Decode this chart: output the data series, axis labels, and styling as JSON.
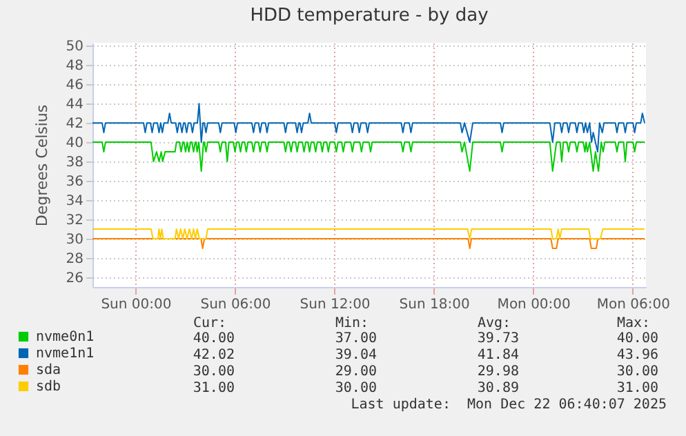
{
  "chart_data": {
    "type": "line",
    "title": "HDD temperature - by day",
    "ylabel": "Degrees Celsius",
    "xlim": [
      "2025-12-20T21:24",
      "2025-12-22T06:48"
    ],
    "xticks": [
      {
        "value": "2025-12-21T00:00",
        "label": "Sun 00:00"
      },
      {
        "value": "2025-12-21T06:00",
        "label": "Sun 06:00"
      },
      {
        "value": "2025-12-21T12:00",
        "label": "Sun 12:00"
      },
      {
        "value": "2025-12-21T18:00",
        "label": "Sun 18:00"
      },
      {
        "value": "2025-12-22T00:00",
        "label": "Mon 00:00"
      },
      {
        "value": "2025-12-22T06:00",
        "label": "Mon 06:00"
      }
    ],
    "ylim": [
      25,
      50.3
    ],
    "yticks": [
      26,
      28,
      30,
      32,
      34,
      36,
      38,
      40,
      42,
      44,
      46,
      48,
      50
    ],
    "grid": true,
    "legend": "bottom left",
    "marker": "none",
    "line_style": "solid",
    "series": [
      {
        "name": "nvme0n1",
        "color": "#00cc00",
        "x": [
          "2025-12-20T21:24",
          "2025-12-20T21:59",
          "2025-12-20T22:05",
          "2025-12-20T22:11",
          "2025-12-21T00:56",
          "2025-12-21T01:05",
          "2025-12-21T01:16",
          "2025-12-21T01:25",
          "2025-12-21T01:33",
          "2025-12-21T01:38",
          "2025-12-21T01:47",
          "2025-12-21T02:23",
          "2025-12-21T02:28",
          "2025-12-21T02:39",
          "2025-12-21T02:45",
          "2025-12-21T02:51",
          "2025-12-21T02:55",
          "2025-12-21T03:01",
          "2025-12-21T03:07",
          "2025-12-21T03:13",
          "2025-12-21T03:19",
          "2025-12-21T03:24",
          "2025-12-21T03:30",
          "2025-12-21T03:36",
          "2025-12-21T03:39",
          "2025-12-21T03:43",
          "2025-12-21T03:49",
          "2025-12-21T03:58",
          "2025-12-21T04:06",
          "2025-12-21T04:09",
          "2025-12-21T04:15",
          "2025-12-21T04:21",
          "2025-12-21T05:01",
          "2025-12-21T05:07",
          "2025-12-21T05:13",
          "2025-12-21T05:26",
          "2025-12-21T05:32",
          "2025-12-21T05:38",
          "2025-12-21T05:54",
          "2025-12-21T06:00",
          "2025-12-21T06:06",
          "2025-12-21T06:14",
          "2025-12-21T06:20",
          "2025-12-21T06:26",
          "2025-12-21T06:35",
          "2025-12-21T06:41",
          "2025-12-21T06:47",
          "2025-12-21T07:01",
          "2025-12-21T07:07",
          "2025-12-21T07:13",
          "2025-12-21T07:25",
          "2025-12-21T07:31",
          "2025-12-21T07:37",
          "2025-12-21T07:50",
          "2025-12-21T07:56",
          "2025-12-21T08:02",
          "2025-12-21T08:57",
          "2025-12-21T09:03",
          "2025-12-21T09:09",
          "2025-12-21T09:17",
          "2025-12-21T09:23",
          "2025-12-21T09:29",
          "2025-12-21T09:39",
          "2025-12-21T09:45",
          "2025-12-21T09:51",
          "2025-12-21T10:04",
          "2025-12-21T10:10",
          "2025-12-21T10:16",
          "2025-12-21T10:24",
          "2025-12-21T10:30",
          "2025-12-21T10:36",
          "2025-12-21T10:46",
          "2025-12-21T10:52",
          "2025-12-21T10:58",
          "2025-12-21T11:10",
          "2025-12-21T11:16",
          "2025-12-21T11:22",
          "2025-12-21T11:32",
          "2025-12-21T11:38",
          "2025-12-21T11:44",
          "2025-12-21T12:01",
          "2025-12-21T12:07",
          "2025-12-21T12:13",
          "2025-12-21T12:26",
          "2025-12-21T12:32",
          "2025-12-21T12:38",
          "2025-12-21T12:59",
          "2025-12-21T13:05",
          "2025-12-21T13:11",
          "2025-12-21T13:32",
          "2025-12-21T13:38",
          "2025-12-21T13:44",
          "2025-12-21T14:05",
          "2025-12-21T14:11",
          "2025-12-21T14:17",
          "2025-12-21T16:02",
          "2025-12-21T16:08",
          "2025-12-21T16:14",
          "2025-12-21T16:31",
          "2025-12-21T16:37",
          "2025-12-21T16:43",
          "2025-12-21T19:36",
          "2025-12-21T19:42",
          "2025-12-21T19:51",
          "2025-12-21T20:10",
          "2025-12-21T20:21",
          "2025-12-21T22:01",
          "2025-12-21T22:07",
          "2025-12-21T22:13",
          "2025-12-22T01:00",
          "2025-12-22T01:10",
          "2025-12-22T01:24",
          "2025-12-22T01:37",
          "2025-12-22T01:43",
          "2025-12-22T01:49",
          "2025-12-22T02:02",
          "2025-12-22T02:08",
          "2025-12-22T02:14",
          "2025-12-22T02:32",
          "2025-12-22T02:38",
          "2025-12-22T02:44",
          "2025-12-22T03:01",
          "2025-12-22T03:07",
          "2025-12-22T03:11",
          "2025-12-22T03:16",
          "2025-12-22T03:24",
          "2025-12-22T03:37",
          "2025-12-22T03:45",
          "2025-12-22T03:56",
          "2025-12-22T04:06",
          "2025-12-22T04:13",
          "2025-12-22T04:19",
          "2025-12-22T04:57",
          "2025-12-22T05:03",
          "2025-12-22T05:09",
          "2025-12-22T05:27",
          "2025-12-22T05:33",
          "2025-12-22T05:39",
          "2025-12-22T06:01",
          "2025-12-22T06:07",
          "2025-12-22T06:13",
          "2025-12-22T06:43"
        ],
        "values": [
          40,
          40,
          39,
          40,
          40,
          38,
          39,
          38,
          39,
          38,
          39,
          39,
          40,
          40,
          39,
          40,
          40,
          39,
          40,
          39,
          40,
          40,
          39,
          40,
          40,
          39,
          40,
          37,
          40,
          40,
          39,
          40,
          40,
          39,
          40,
          40,
          38,
          40,
          40,
          39,
          40,
          40,
          39,
          40,
          40,
          39,
          40,
          40,
          39,
          40,
          40,
          39,
          40,
          40,
          39,
          40,
          40,
          39,
          40,
          40,
          39,
          40,
          40,
          39,
          40,
          40,
          39,
          40,
          40,
          39,
          40,
          40,
          39,
          40,
          40,
          39,
          40,
          40,
          39,
          40,
          40,
          39,
          40,
          40,
          39,
          40,
          40,
          39,
          40,
          40,
          39,
          40,
          40,
          39,
          40,
          40,
          39,
          40,
          40,
          39,
          40,
          40,
          39,
          40,
          37,
          40,
          40,
          39,
          40,
          40,
          37,
          40,
          40,
          38,
          40,
          40,
          39,
          40,
          40,
          39,
          40,
          40,
          39,
          40,
          39,
          40,
          37,
          39,
          37,
          40,
          39,
          40,
          40,
          39,
          40,
          40,
          38,
          40,
          40,
          39,
          40,
          40
        ]
      },
      {
        "name": "nvme1n1",
        "color": "#0066b3",
        "x": [
          "2025-12-20T21:24",
          "2025-12-20T21:59",
          "2025-12-20T22:05",
          "2025-12-20T22:11",
          "2025-12-21T00:29",
          "2025-12-21T00:35",
          "2025-12-21T00:41",
          "2025-12-21T00:54",
          "2025-12-21T01:00",
          "2025-12-21T01:06",
          "2025-12-21T01:19",
          "2025-12-21T01:25",
          "2025-12-21T01:31",
          "2025-12-21T01:37",
          "2025-12-21T01:43",
          "2025-12-21T01:57",
          "2025-12-21T02:03",
          "2025-12-21T02:09",
          "2025-12-21T02:25",
          "2025-12-21T02:31",
          "2025-12-21T02:37",
          "2025-12-21T02:42",
          "2025-12-21T02:48",
          "2025-12-21T02:54",
          "2025-12-21T02:59",
          "2025-12-21T03:05",
          "2025-12-21T03:11",
          "2025-12-21T03:20",
          "2025-12-21T03:26",
          "2025-12-21T03:32",
          "2025-12-21T03:44",
          "2025-12-21T03:50",
          "2025-12-21T03:58",
          "2025-12-21T04:04",
          "2025-12-21T04:09",
          "2025-12-21T04:15",
          "2025-12-21T04:21",
          "2025-12-21T05:01",
          "2025-12-21T05:07",
          "2025-12-21T05:13",
          "2025-12-21T05:57",
          "2025-12-21T06:03",
          "2025-12-21T06:09",
          "2025-12-21T07:01",
          "2025-12-21T07:07",
          "2025-12-21T07:13",
          "2025-12-21T07:25",
          "2025-12-21T07:31",
          "2025-12-21T07:37",
          "2025-12-21T07:50",
          "2025-12-21T07:56",
          "2025-12-21T08:02",
          "2025-12-21T08:57",
          "2025-12-21T09:03",
          "2025-12-21T09:09",
          "2025-12-21T09:39",
          "2025-12-21T09:45",
          "2025-12-21T09:51",
          "2025-12-21T09:55",
          "2025-12-21T10:01",
          "2025-12-21T10:07",
          "2025-12-21T10:24",
          "2025-12-21T10:30",
          "2025-12-21T10:36",
          "2025-12-21T12:01",
          "2025-12-21T12:07",
          "2025-12-21T12:13",
          "2025-12-21T12:59",
          "2025-12-21T13:05",
          "2025-12-21T13:11",
          "2025-12-21T13:24",
          "2025-12-21T13:30",
          "2025-12-21T13:36",
          "2025-12-21T13:54",
          "2025-12-21T14:00",
          "2025-12-21T14:06",
          "2025-12-21T16:02",
          "2025-12-21T16:08",
          "2025-12-21T16:14",
          "2025-12-21T16:31",
          "2025-12-21T16:37",
          "2025-12-21T16:43",
          "2025-12-21T19:36",
          "2025-12-21T19:42",
          "2025-12-21T19:51",
          "2025-12-21T20:10",
          "2025-12-21T20:21",
          "2025-12-21T22:01",
          "2025-12-21T22:07",
          "2025-12-21T22:13",
          "2025-12-22T01:00",
          "2025-12-22T01:10",
          "2025-12-22T01:18",
          "2025-12-22T01:37",
          "2025-12-22T01:43",
          "2025-12-22T01:49",
          "2025-12-22T02:02",
          "2025-12-22T02:08",
          "2025-12-22T02:14",
          "2025-12-22T02:32",
          "2025-12-22T02:38",
          "2025-12-22T02:44",
          "2025-12-22T02:57",
          "2025-12-22T03:03",
          "2025-12-22T03:09",
          "2025-12-22T03:16",
          "2025-12-22T03:24",
          "2025-12-22T03:31",
          "2025-12-22T03:37",
          "2025-12-22T03:53",
          "2025-12-22T04:00",
          "2025-12-22T04:10",
          "2025-12-22T04:16",
          "2025-12-22T04:57",
          "2025-12-22T05:03",
          "2025-12-22T05:09",
          "2025-12-22T05:27",
          "2025-12-22T05:33",
          "2025-12-22T05:39",
          "2025-12-22T06:01",
          "2025-12-22T06:07",
          "2025-12-22T06:13",
          "2025-12-22T06:29",
          "2025-12-22T06:35",
          "2025-12-22T06:43"
        ],
        "values": [
          42,
          42,
          41,
          42,
          42,
          41,
          42,
          42,
          41,
          42,
          42,
          41,
          42,
          41,
          42,
          42,
          43,
          42,
          42,
          41,
          42,
          42,
          41,
          42,
          42,
          41,
          42,
          42,
          41,
          42,
          42,
          44,
          40,
          42,
          42,
          41,
          42,
          42,
          41,
          42,
          42,
          41,
          42,
          42,
          41,
          42,
          42,
          41,
          42,
          42,
          41,
          42,
          42,
          41,
          42,
          42,
          41,
          42,
          42,
          41,
          42,
          42,
          43,
          42,
          42,
          41,
          42,
          42,
          41,
          42,
          42,
          41,
          42,
          42,
          41,
          42,
          42,
          41,
          42,
          42,
          41,
          42,
          42,
          41,
          42,
          40,
          42,
          42,
          41,
          42,
          42,
          40,
          42,
          42,
          41,
          42,
          42,
          41,
          42,
          42,
          41,
          42,
          42,
          41,
          42,
          41,
          42,
          40,
          41,
          39,
          42,
          41,
          42,
          42,
          41,
          42,
          42,
          41,
          42,
          42,
          41,
          42,
          42,
          43,
          42
        ]
      },
      {
        "name": "sda",
        "color": "#ff8000",
        "x": [
          "2025-12-20T21:24",
          "2025-12-21T03:57",
          "2025-12-21T04:03",
          "2025-12-21T04:09",
          "2025-12-21T20:04",
          "2025-12-21T20:10",
          "2025-12-21T20:16",
          "2025-12-22T01:04",
          "2025-12-22T01:10",
          "2025-12-22T01:24",
          "2025-12-22T01:30",
          "2025-12-22T03:24",
          "2025-12-22T03:30",
          "2025-12-22T03:48",
          "2025-12-22T03:54",
          "2025-12-22T06:43"
        ],
        "values": [
          30,
          30,
          29,
          30,
          30,
          29,
          30,
          30,
          29,
          29,
          30,
          30,
          29,
          29,
          30,
          30
        ]
      },
      {
        "name": "sdb",
        "color": "#ffcc00",
        "x": [
          "2025-12-20T21:24",
          "2025-12-21T00:56",
          "2025-12-21T01:03",
          "2025-12-21T01:21",
          "2025-12-21T01:25",
          "2025-12-21T01:30",
          "2025-12-21T01:35",
          "2025-12-21T01:40",
          "2025-12-21T02:23",
          "2025-12-21T02:28",
          "2025-12-21T02:36",
          "2025-12-21T02:43",
          "2025-12-21T02:51",
          "2025-12-21T02:58",
          "2025-12-21T03:06",
          "2025-12-21T03:15",
          "2025-12-21T03:23",
          "2025-12-21T03:30",
          "2025-12-21T03:37",
          "2025-12-21T03:43",
          "2025-12-21T03:51",
          "2025-12-21T04:15",
          "2025-12-21T04:21",
          "2025-12-21T20:02",
          "2025-12-21T20:10",
          "2025-12-21T20:17",
          "2025-12-22T01:04",
          "2025-12-22T01:10",
          "2025-12-22T01:24",
          "2025-12-22T01:30",
          "2025-12-22T01:36",
          "2025-12-22T01:43",
          "2025-12-22T03:21",
          "2025-12-22T03:27",
          "2025-12-22T04:03",
          "2025-12-22T04:12",
          "2025-12-22T06:43"
        ],
        "values": [
          31,
          31,
          30,
          30,
          31,
          30,
          31,
          30,
          30,
          31,
          30,
          31,
          30,
          31,
          30,
          31,
          30,
          31,
          30,
          31,
          30,
          30,
          31,
          31,
          30,
          31,
          31,
          30,
          30,
          31,
          30,
          31,
          31,
          30,
          30,
          31,
          31
        ]
      }
    ],
    "annotations": [
      "Cur:",
      "Min:",
      "Avg:",
      "Max:",
      "40.00",
      "37.00",
      "39.73",
      "40.00",
      "42.02",
      "39.04",
      "41.84",
      "43.96",
      "30.00",
      "29.00",
      "29.98",
      "30.00",
      "31.00",
      "30.00",
      "30.89",
      "31.00",
      "Last update:  Mon Dec 22 06:40:07 2025"
    ]
  }
}
